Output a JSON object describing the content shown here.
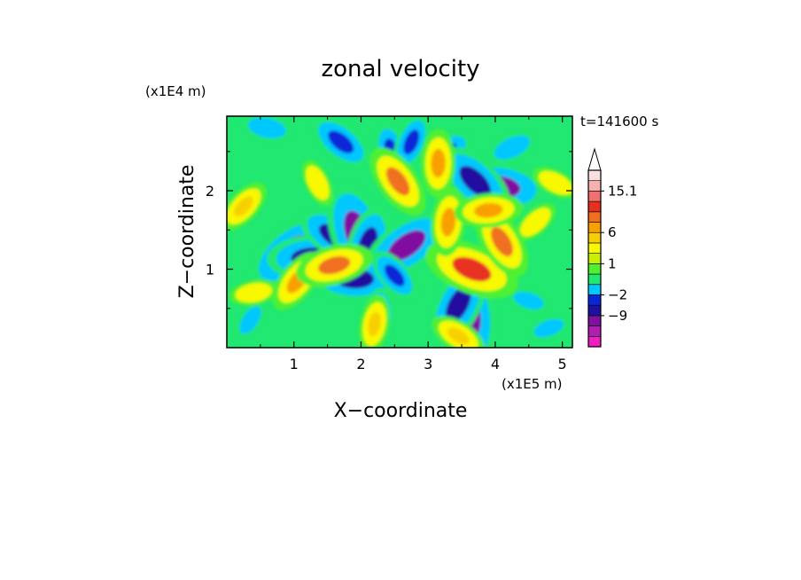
{
  "chart_data": {
    "type": "heatmap",
    "title": "zonal velocity",
    "xlabel": "X−coordinate",
    "ylabel": "Z−coordinate",
    "x_unit": "(x1E5 m)",
    "y_unit": "(x1E4 m)",
    "time_label": "t=141600 s",
    "xlim": [
      0,
      5.15
    ],
    "ylim": [
      0,
      2.95
    ],
    "x_ticks": [
      1,
      2,
      3,
      4,
      5
    ],
    "x_tick_labels": [
      "1",
      "2",
      "3",
      "4",
      "5"
    ],
    "y_ticks": [
      1,
      2
    ],
    "y_tick_labels": [
      "1",
      "2"
    ],
    "colorbar": {
      "colors": [
        "#f020c0",
        "#b020b0",
        "#8010a0",
        "#2010a0",
        "#0828d8",
        "#00c8ff",
        "#20e870",
        "#50f030",
        "#c8f000",
        "#f8f800",
        "#f8d000",
        "#f8a000",
        "#f07020",
        "#e83020",
        "#f07070",
        "#f8b0b0",
        "#f8e0e0"
      ],
      "labels": [
        {
          "text": "−9",
          "value": -9
        },
        {
          "text": "−2",
          "value": -2
        },
        {
          "text": "1",
          "value": 1
        },
        {
          "text": "6",
          "value": 6
        },
        {
          "text": "15.1",
          "value": 15.1
        }
      ],
      "label_slots": [
        3,
        5,
        8,
        11,
        15
      ]
    },
    "features": [
      {
        "x": 0.95,
        "z": 1.22,
        "value": -7
      },
      {
        "x": 1.25,
        "z": 1.15,
        "value": -6
      },
      {
        "x": 1.6,
        "z": 1.42,
        "value": -5
      },
      {
        "x": 1.95,
        "z": 1.45,
        "value": -8
      },
      {
        "x": 2.1,
        "z": 1.32,
        "value": -5
      },
      {
        "x": 2.68,
        "z": 1.3,
        "value": -7
      },
      {
        "x": 1.9,
        "z": 0.88,
        "value": -6
      },
      {
        "x": 1.7,
        "z": 2.62,
        "value": -4
      },
      {
        "x": 2.45,
        "z": 2.5,
        "value": -3
      },
      {
        "x": 2.75,
        "z": 2.62,
        "value": -3
      },
      {
        "x": 3.25,
        "z": 2.5,
        "value": -3
      },
      {
        "x": 4.05,
        "z": 2.05,
        "value": -7
      },
      {
        "x": 3.7,
        "z": 2.12,
        "value": -6
      },
      {
        "x": 3.6,
        "z": 0.42,
        "value": -8
      },
      {
        "x": 3.45,
        "z": 0.55,
        "value": -6
      },
      {
        "x": 4.25,
        "z": 2.55,
        "value": -2
      },
      {
        "x": 0.6,
        "z": 2.8,
        "value": -2
      },
      {
        "x": 2.5,
        "z": 0.92,
        "value": -3
      },
      {
        "x": 2.3,
        "z": 0.45,
        "value": -2
      },
      {
        "x": 0.35,
        "z": 0.35,
        "value": -1
      },
      {
        "x": 4.8,
        "z": 0.25,
        "value": -1
      },
      {
        "x": 4.5,
        "z": 0.6,
        "value": -1
      },
      {
        "x": 2.55,
        "z": 2.12,
        "value": 5
      },
      {
        "x": 3.15,
        "z": 2.35,
        "value": 4
      },
      {
        "x": 1.05,
        "z": 0.85,
        "value": 4
      },
      {
        "x": 1.6,
        "z": 1.05,
        "value": 5
      },
      {
        "x": 3.65,
        "z": 1.0,
        "value": 7
      },
      {
        "x": 4.1,
        "z": 1.35,
        "value": 5
      },
      {
        "x": 3.3,
        "z": 1.6,
        "value": 4
      },
      {
        "x": 0.25,
        "z": 1.8,
        "value": 3
      },
      {
        "x": 0.4,
        "z": 0.7,
        "value": 2
      },
      {
        "x": 4.9,
        "z": 2.1,
        "value": 2
      },
      {
        "x": 1.35,
        "z": 2.1,
        "value": 2
      },
      {
        "x": 2.2,
        "z": 0.3,
        "value": 3
      },
      {
        "x": 4.6,
        "z": 1.6,
        "value": 2
      },
      {
        "x": 3.9,
        "z": 1.75,
        "value": 4
      },
      {
        "x": 3.45,
        "z": 0.15,
        "value": 3
      }
    ]
  }
}
